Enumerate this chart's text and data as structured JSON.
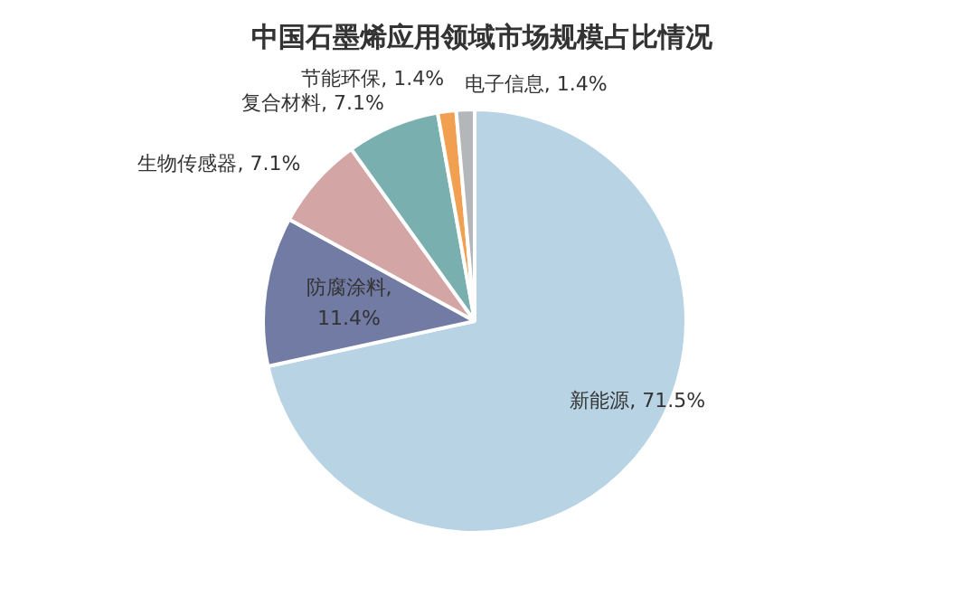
{
  "chart_data": {
    "type": "pie",
    "title": "中国石墨烯应用领域市场规模占比情况",
    "categories": [
      "新能源",
      "防腐涂料",
      "生物传感器",
      "复合材料",
      "节能环保",
      "电子信息"
    ],
    "values": [
      71.5,
      11.4,
      7.1,
      7.1,
      1.4,
      1.4
    ],
    "colors": [
      "#b8d3e4",
      "#717ba3",
      "#d4a5a5",
      "#7aafaf",
      "#f0a050",
      "#b3b7b9"
    ],
    "value_labels": [
      ", 71.5%",
      ",\n11.4%",
      ", 7.1%",
      ", 7.1%",
      ", 1.4%",
      ", 1.4%"
    ]
  }
}
